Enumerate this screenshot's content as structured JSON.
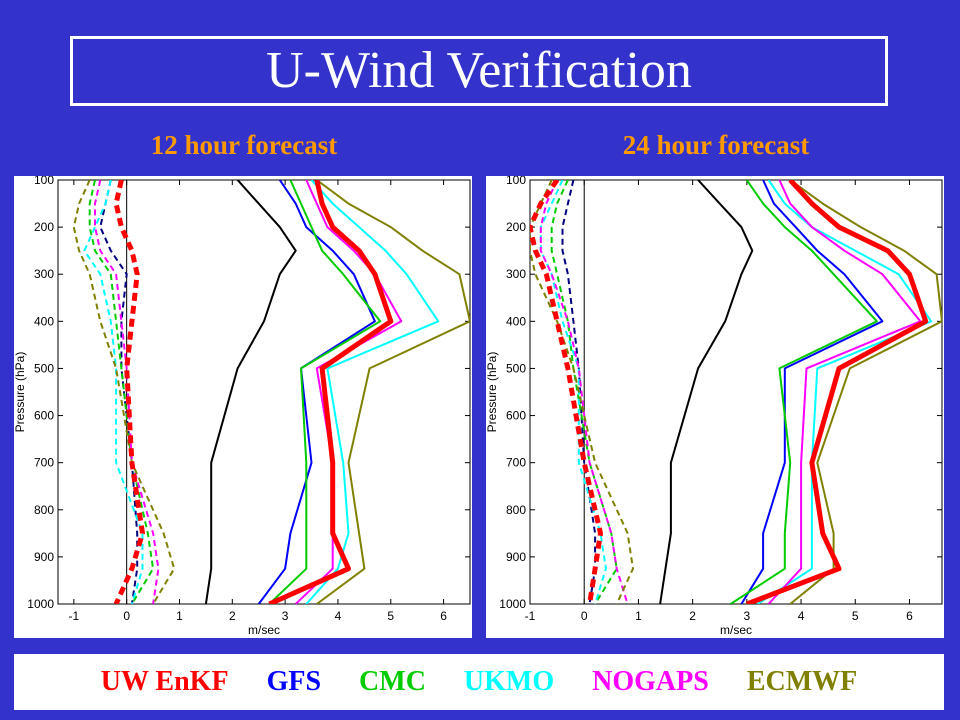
{
  "title": "U-Wind Verification",
  "subtitles": [
    "12 hour forecast",
    "24 hour forecast"
  ],
  "legend": [
    {
      "label": "UW EnKF",
      "color": "#ff0000"
    },
    {
      "label": "GFS",
      "color": "#0000ff"
    },
    {
      "label": "CMC",
      "color": "#00cc00"
    },
    {
      "label": "UKMO",
      "color": "#00ffff"
    },
    {
      "label": "NOGAPS",
      "color": "#ff00ff"
    },
    {
      "label": "ECMWF",
      "color": "#808000"
    }
  ],
  "chart_data": [
    {
      "type": "line",
      "title": "12 hour forecast",
      "xlabel": "m/sec",
      "ylabel": "Pressure (hPa)",
      "xlim": [
        -1.3,
        6.5
      ],
      "ylim": [
        1000,
        100
      ],
      "xticks": [
        -1,
        0,
        1,
        2,
        3,
        4,
        5,
        6
      ],
      "yticks": [
        100,
        200,
        300,
        400,
        500,
        600,
        700,
        800,
        900,
        1000
      ],
      "pressure": [
        100,
        150,
        200,
        250,
        300,
        400,
        500,
        700,
        850,
        925,
        1000
      ],
      "zero_line": 0,
      "series": [
        {
          "color": "#000000",
          "style": "solid",
          "width": 2,
          "values": [
            2.1,
            2.5,
            2.9,
            3.2,
            2.9,
            2.6,
            2.1,
            1.6,
            1.6,
            1.6,
            1.5
          ]
        },
        {
          "color": "#0000ff",
          "style": "solid",
          "width": 2,
          "values": [
            2.9,
            3.2,
            3.4,
            3.9,
            4.3,
            4.7,
            3.3,
            3.5,
            3.1,
            3.0,
            2.5
          ]
        },
        {
          "color": "#00cc00",
          "style": "solid",
          "width": 2,
          "values": [
            3.1,
            3.3,
            3.5,
            3.7,
            4.1,
            4.8,
            3.3,
            3.4,
            3.4,
            3.4,
            2.7
          ]
        },
        {
          "color": "#00ffff",
          "style": "solid",
          "width": 2,
          "values": [
            3.5,
            3.9,
            4.4,
            4.9,
            5.3,
            5.9,
            3.8,
            4.1,
            4.2,
            4.0,
            3.4
          ]
        },
        {
          "color": "#ff00ff",
          "style": "solid",
          "width": 2,
          "values": [
            3.4,
            3.6,
            3.8,
            4.3,
            4.7,
            5.2,
            3.6,
            3.9,
            3.9,
            3.9,
            3.2
          ]
        },
        {
          "color": "#808000",
          "style": "solid",
          "width": 2,
          "values": [
            3.6,
            4.2,
            5.0,
            5.6,
            6.3,
            6.5,
            4.6,
            4.2,
            4.4,
            4.5,
            3.6
          ]
        },
        {
          "color": "#ff0000",
          "style": "solid",
          "width": 5,
          "values": [
            3.6,
            3.7,
            3.9,
            4.4,
            4.7,
            5.0,
            3.7,
            3.9,
            3.9,
            4.2,
            2.7
          ]
        },
        {
          "color": "#000080",
          "style": "dashed",
          "width": 2,
          "values": [
            -0.3,
            -0.4,
            -0.5,
            -0.3,
            0.0,
            -0.1,
            -0.1,
            0.1,
            0.2,
            0.2,
            0.1
          ]
        },
        {
          "color": "#00cc00",
          "style": "dashed",
          "width": 2,
          "values": [
            -0.6,
            -0.7,
            -0.7,
            -0.6,
            -0.3,
            -0.2,
            -0.1,
            0.1,
            0.4,
            0.5,
            0.1
          ]
        },
        {
          "color": "#00ffff",
          "style": "dashed",
          "width": 2,
          "values": [
            -0.3,
            -0.4,
            -0.6,
            -0.8,
            -0.5,
            -0.3,
            -0.2,
            -0.2,
            0.3,
            0.3,
            0.1
          ]
        },
        {
          "color": "#ff00ff",
          "style": "dashed",
          "width": 2,
          "values": [
            -0.5,
            -0.6,
            -0.6,
            -0.5,
            -0.2,
            -0.1,
            0.0,
            0.1,
            0.5,
            0.6,
            0.5
          ]
        },
        {
          "color": "#808000",
          "style": "dashed",
          "width": 2,
          "values": [
            -0.7,
            -0.9,
            -1.0,
            -0.9,
            -0.7,
            -0.5,
            -0.2,
            0.1,
            0.7,
            0.9,
            0.5
          ]
        },
        {
          "color": "#ff0000",
          "style": "dashed",
          "width": 5,
          "values": [
            -0.1,
            -0.2,
            -0.1,
            0.1,
            0.2,
            0.1,
            0.0,
            0.1,
            0.3,
            0.1,
            -0.2
          ]
        }
      ]
    },
    {
      "type": "line",
      "title": "24 hour forecast",
      "xlabel": "m/sec",
      "ylabel": "Pressure (hPa)",
      "xlim": [
        -1.0,
        6.6
      ],
      "ylim": [
        1000,
        100
      ],
      "xticks": [
        -1,
        0,
        1,
        2,
        3,
        4,
        5,
        6
      ],
      "yticks": [
        100,
        200,
        300,
        400,
        500,
        600,
        700,
        800,
        900,
        1000
      ],
      "pressure": [
        100,
        150,
        200,
        250,
        300,
        400,
        500,
        700,
        850,
        925,
        1000
      ],
      "zero_line": 0,
      "series": [
        {
          "color": "#000000",
          "style": "solid",
          "width": 2,
          "values": [
            2.1,
            2.5,
            2.9,
            3.1,
            2.9,
            2.6,
            2.1,
            1.6,
            1.6,
            1.5,
            1.4
          ]
        },
        {
          "color": "#0000ff",
          "style": "solid",
          "width": 2,
          "values": [
            3.3,
            3.5,
            3.9,
            4.3,
            4.8,
            5.5,
            3.7,
            3.7,
            3.3,
            3.3,
            2.9
          ]
        },
        {
          "color": "#00cc00",
          "style": "solid",
          "width": 2,
          "values": [
            3.0,
            3.3,
            3.7,
            4.2,
            4.6,
            5.4,
            3.6,
            3.8,
            3.7,
            3.7,
            2.7
          ]
        },
        {
          "color": "#00ffff",
          "style": "solid",
          "width": 2,
          "values": [
            3.4,
            3.7,
            4.2,
            5.0,
            5.8,
            6.4,
            4.3,
            4.2,
            4.2,
            4.2,
            3.2
          ]
        },
        {
          "color": "#ff00ff",
          "style": "solid",
          "width": 2,
          "values": [
            3.6,
            3.8,
            4.2,
            4.8,
            5.5,
            6.2,
            4.1,
            4.0,
            4.0,
            4.0,
            3.4
          ]
        },
        {
          "color": "#808000",
          "style": "solid",
          "width": 2,
          "values": [
            3.8,
            4.4,
            5.1,
            5.9,
            6.5,
            6.6,
            4.9,
            4.3,
            4.6,
            4.6,
            3.8
          ]
        },
        {
          "color": "#ff0000",
          "style": "solid",
          "width": 5,
          "values": [
            3.8,
            4.2,
            4.7,
            5.6,
            6.0,
            6.3,
            4.7,
            4.2,
            4.4,
            4.7,
            3.0
          ]
        },
        {
          "color": "#000080",
          "style": "dashed",
          "width": 2,
          "values": [
            -0.2,
            -0.3,
            -0.4,
            -0.4,
            -0.3,
            -0.2,
            -0.1,
            0.0,
            0.2,
            0.2,
            0.1
          ]
        },
        {
          "color": "#00cc00",
          "style": "dashed",
          "width": 2,
          "values": [
            -0.3,
            -0.5,
            -0.6,
            -0.6,
            -0.5,
            -0.3,
            -0.2,
            0.1,
            0.5,
            0.6,
            0.2
          ]
        },
        {
          "color": "#00ffff",
          "style": "dashed",
          "width": 2,
          "values": [
            -0.4,
            -0.6,
            -0.8,
            -0.8,
            -0.6,
            -0.4,
            -0.1,
            -0.1,
            0.3,
            0.4,
            0.2
          ]
        },
        {
          "color": "#ff00ff",
          "style": "dashed",
          "width": 2,
          "values": [
            -0.5,
            -0.7,
            -0.8,
            -0.8,
            -0.6,
            -0.3,
            -0.1,
            0.1,
            0.5,
            0.6,
            0.8
          ]
        },
        {
          "color": "#808000",
          "style": "dashed",
          "width": 2,
          "values": [
            -0.6,
            -0.8,
            -1.0,
            -1.0,
            -0.9,
            -0.5,
            -0.2,
            0.2,
            0.8,
            0.9,
            0.6
          ]
        },
        {
          "color": "#ff0000",
          "style": "dashed",
          "width": 5,
          "values": [
            -0.5,
            -0.8,
            -1.0,
            -0.9,
            -0.7,
            -0.5,
            -0.3,
            0.0,
            0.3,
            0.2,
            0.1
          ]
        }
      ]
    }
  ]
}
